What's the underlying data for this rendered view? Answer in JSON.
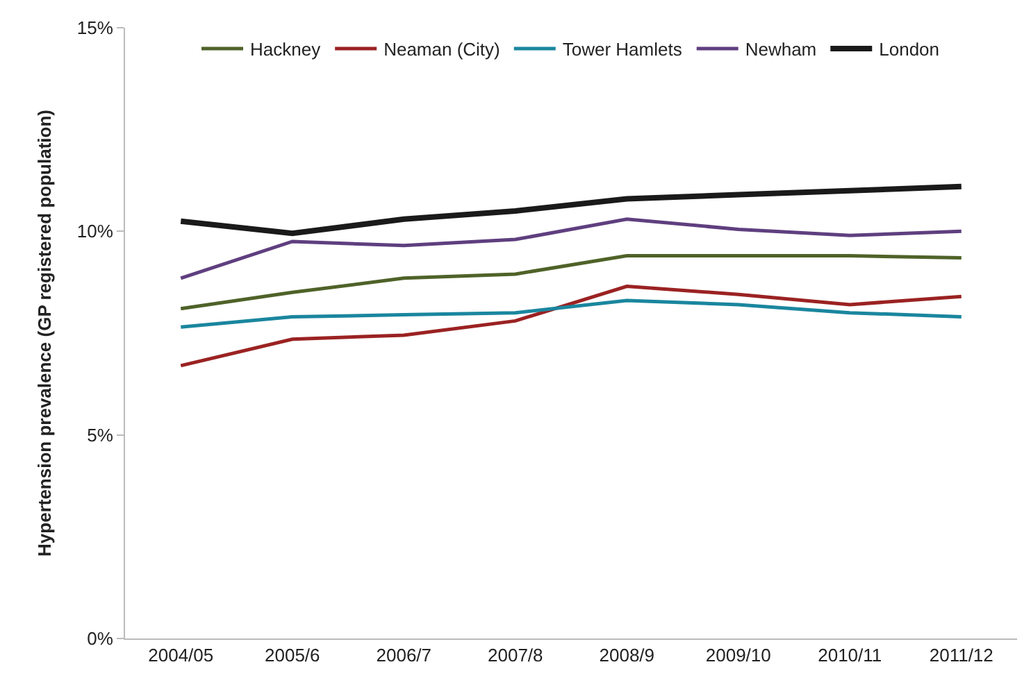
{
  "chart_data": {
    "type": "line",
    "ylabel": "Hypertension prevalence (GP registered population)",
    "categories": [
      "2004/05",
      "2005/6",
      "2006/7",
      "2007/8",
      "2008/9",
      "2009/10",
      "2010/11",
      "2011/12"
    ],
    "series": [
      {
        "name": "Hackney",
        "color": "#4f6228",
        "values": [
          8.1,
          8.5,
          8.85,
          8.95,
          9.4,
          9.4,
          9.4,
          9.35
        ]
      },
      {
        "name": "Neaman (City)",
        "color": "#9b2222",
        "values": [
          6.7,
          7.35,
          7.45,
          7.8,
          8.65,
          8.45,
          8.2,
          8.4
        ]
      },
      {
        "name": "Tower Hamlets",
        "color": "#1a869e",
        "values": [
          7.65,
          7.9,
          7.95,
          8.0,
          8.3,
          8.2,
          8.0,
          7.9
        ]
      },
      {
        "name": "Newham",
        "color": "#5f3f7f",
        "values": [
          8.85,
          9.75,
          9.65,
          9.8,
          10.3,
          10.05,
          9.9,
          10.0
        ]
      },
      {
        "name": "London",
        "color": "#1a1a1a",
        "values": [
          10.25,
          9.95,
          10.3,
          10.5,
          10.8,
          10.9,
          11.0,
          11.1
        ]
      }
    ],
    "ylim": [
      0,
      15
    ],
    "yticks": [
      {
        "value": 0,
        "label": "0%"
      },
      {
        "value": 5,
        "label": "5%"
      },
      {
        "value": 10,
        "label": "10%"
      },
      {
        "value": 15,
        "label": "15%"
      }
    ],
    "legend": "top",
    "marker": "none",
    "line_style": "solid"
  }
}
